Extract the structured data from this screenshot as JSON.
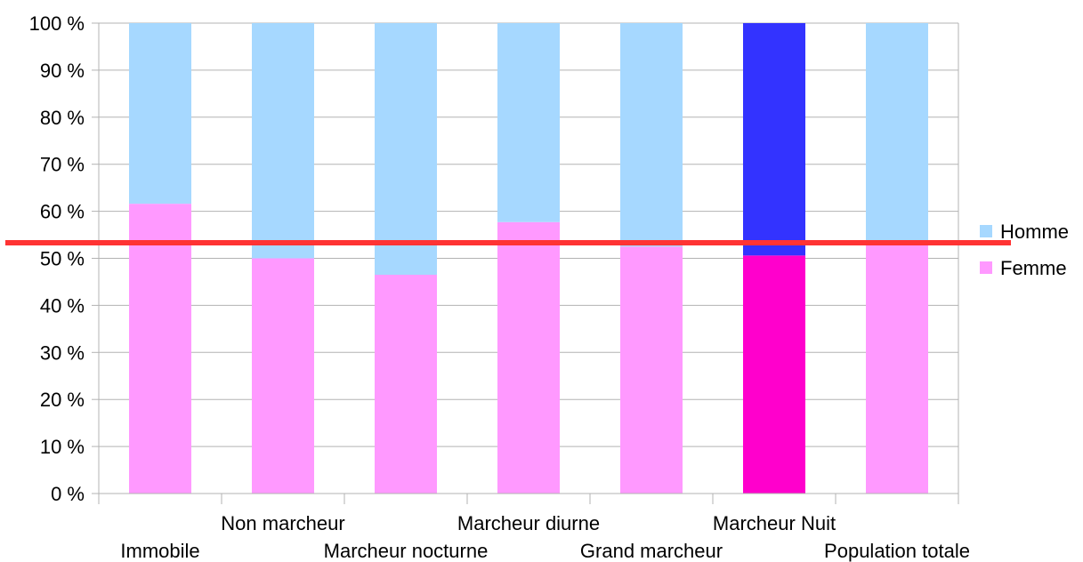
{
  "chart_data": {
    "type": "bar",
    "stacked": true,
    "percent_stacked": true,
    "categories": [
      "Immobile",
      "Non marcheur",
      "Marcheur nocturne",
      "Marcheur diurne",
      "Grand marcheur",
      "Marcheur Nuit",
      "Population totale"
    ],
    "series": [
      {
        "name": "Femme",
        "values": [
          61.6,
          50.0,
          46.5,
          57.7,
          52.5,
          50.6,
          53.5
        ],
        "color": "#ff99ff",
        "highlight_color": "#ff00cc"
      },
      {
        "name": "Homme",
        "values": [
          38.4,
          50.0,
          53.5,
          42.3,
          47.5,
          49.4,
          46.5
        ],
        "color": "#a6d8ff",
        "highlight_color": "#3333ff"
      }
    ],
    "highlighted_category": "Marcheur Nuit",
    "ylim": [
      0,
      100
    ],
    "yticks": [
      "0 %",
      "10 %",
      "20 %",
      "30 %",
      "40 %",
      "50 %",
      "60 %",
      "70 %",
      "80 %",
      "90 %",
      "100 %"
    ],
    "grid": true,
    "legend_position": "right",
    "reference_line": {
      "value": 53.3,
      "color": "#ff3333"
    },
    "title": "",
    "xlabel": "",
    "ylabel": ""
  }
}
